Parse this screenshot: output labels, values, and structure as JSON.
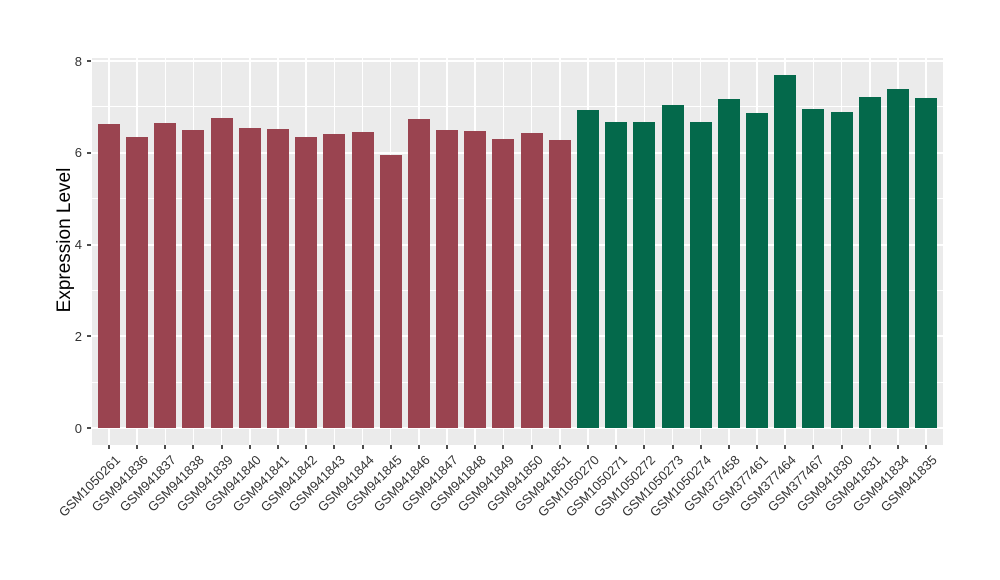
{
  "chart_data": {
    "type": "bar",
    "title": "",
    "xlabel": "",
    "ylabel": "Expression Level",
    "ylim": [
      0,
      8
    ],
    "yticks": [
      0,
      2,
      4,
      6,
      8
    ],
    "yticks_minor": [
      1,
      3,
      5,
      7
    ],
    "legend": "none",
    "grid": "white major+minor horizontal lines and per-category vertical lines on gray panel",
    "panel_background": "#EBEBEB",
    "gridline_color": "#FFFFFF",
    "axis_text_color": "#333333",
    "tick_mark_color": "#4D4D4D",
    "group_colors": {
      "a": "#9A4450",
      "b": "#04694B"
    },
    "categories": [
      "GSM1050261",
      "GSM941836",
      "GSM941837",
      "GSM941838",
      "GSM941839",
      "GSM941840",
      "GSM941841",
      "GSM941842",
      "GSM941843",
      "GSM941844",
      "GSM941845",
      "GSM941846",
      "GSM941847",
      "GSM941848",
      "GSM941849",
      "GSM941850",
      "GSM941851",
      "GSM1050270",
      "GSM1050271",
      "GSM1050272",
      "GSM1050273",
      "GSM1050274",
      "GSM377458",
      "GSM377461",
      "GSM377464",
      "GSM377467",
      "GSM941830",
      "GSM941831",
      "GSM941834",
      "GSM941835"
    ],
    "values": [
      6.62,
      6.35,
      6.65,
      6.5,
      6.76,
      6.55,
      6.52,
      6.35,
      6.4,
      6.45,
      5.95,
      6.74,
      6.5,
      6.47,
      6.3,
      6.42,
      6.28,
      6.93,
      6.68,
      6.66,
      7.05,
      6.68,
      7.18,
      6.87,
      7.7,
      6.95,
      6.88,
      7.22,
      7.4,
      7.2
    ],
    "groups": [
      "a",
      "a",
      "a",
      "a",
      "a",
      "a",
      "a",
      "a",
      "a",
      "a",
      "a",
      "a",
      "a",
      "a",
      "a",
      "a",
      "a",
      "b",
      "b",
      "b",
      "b",
      "b",
      "b",
      "b",
      "b",
      "b",
      "b",
      "b",
      "b",
      "b"
    ]
  }
}
